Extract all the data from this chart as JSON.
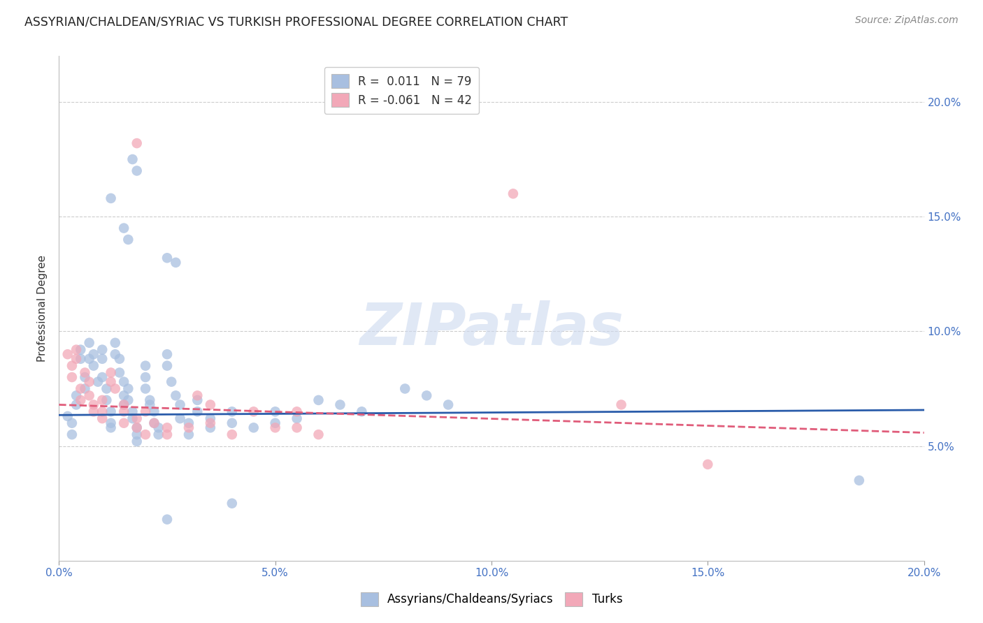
{
  "title": "ASSYRIAN/CHALDEAN/SYRIAC VS TURKISH PROFESSIONAL DEGREE CORRELATION CHART",
  "source": "Source: ZipAtlas.com",
  "ylabel": "Professional Degree",
  "xlim": [
    0.0,
    20.0
  ],
  "ylim": [
    0.0,
    22.0
  ],
  "x_tick_vals": [
    0.0,
    5.0,
    10.0,
    15.0,
    20.0
  ],
  "y_tick_vals": [
    5.0,
    10.0,
    15.0,
    20.0
  ],
  "blue_R": "0.011",
  "blue_N": "79",
  "pink_R": "-0.061",
  "pink_N": "42",
  "blue_color": "#a8bfe0",
  "pink_color": "#f2a8b8",
  "blue_line_color": "#2a5caa",
  "pink_line_color": "#e05c7a",
  "blue_scatter": [
    [
      0.2,
      6.3
    ],
    [
      0.3,
      6.0
    ],
    [
      0.3,
      5.5
    ],
    [
      0.4,
      7.2
    ],
    [
      0.4,
      6.8
    ],
    [
      0.5,
      8.8
    ],
    [
      0.5,
      9.2
    ],
    [
      0.6,
      8.0
    ],
    [
      0.6,
      7.5
    ],
    [
      0.7,
      9.5
    ],
    [
      0.7,
      8.8
    ],
    [
      0.8,
      9.0
    ],
    [
      0.8,
      8.5
    ],
    [
      0.9,
      7.8
    ],
    [
      1.0,
      9.2
    ],
    [
      1.0,
      8.8
    ],
    [
      1.0,
      8.0
    ],
    [
      1.1,
      7.5
    ],
    [
      1.1,
      7.0
    ],
    [
      1.2,
      6.5
    ],
    [
      1.2,
      6.0
    ],
    [
      1.2,
      5.8
    ],
    [
      1.3,
      9.5
    ],
    [
      1.3,
      9.0
    ],
    [
      1.4,
      8.8
    ],
    [
      1.4,
      8.2
    ],
    [
      1.5,
      7.8
    ],
    [
      1.5,
      7.2
    ],
    [
      1.5,
      6.8
    ],
    [
      1.6,
      7.5
    ],
    [
      1.6,
      7.0
    ],
    [
      1.7,
      6.5
    ],
    [
      1.7,
      6.2
    ],
    [
      1.8,
      5.8
    ],
    [
      1.8,
      5.5
    ],
    [
      1.8,
      5.2
    ],
    [
      2.0,
      8.5
    ],
    [
      2.0,
      8.0
    ],
    [
      2.0,
      7.5
    ],
    [
      2.1,
      7.0
    ],
    [
      2.1,
      6.8
    ],
    [
      2.2,
      6.5
    ],
    [
      2.2,
      6.0
    ],
    [
      2.3,
      5.8
    ],
    [
      2.3,
      5.5
    ],
    [
      2.5,
      9.0
    ],
    [
      2.5,
      8.5
    ],
    [
      2.6,
      7.8
    ],
    [
      2.7,
      7.2
    ],
    [
      2.8,
      6.8
    ],
    [
      2.8,
      6.2
    ],
    [
      3.0,
      6.0
    ],
    [
      3.0,
      5.5
    ],
    [
      3.2,
      7.0
    ],
    [
      3.2,
      6.5
    ],
    [
      3.5,
      6.2
    ],
    [
      3.5,
      5.8
    ],
    [
      4.0,
      6.5
    ],
    [
      4.0,
      6.0
    ],
    [
      4.5,
      5.8
    ],
    [
      5.0,
      6.5
    ],
    [
      5.0,
      6.0
    ],
    [
      5.5,
      6.2
    ],
    [
      6.0,
      7.0
    ],
    [
      6.5,
      6.8
    ],
    [
      7.0,
      6.5
    ],
    [
      8.0,
      7.5
    ],
    [
      8.5,
      7.2
    ],
    [
      9.0,
      6.8
    ],
    [
      1.5,
      14.5
    ],
    [
      1.6,
      14.0
    ],
    [
      1.7,
      17.5
    ],
    [
      1.8,
      17.0
    ],
    [
      1.2,
      15.8
    ],
    [
      2.5,
      13.2
    ],
    [
      2.7,
      13.0
    ],
    [
      18.5,
      3.5
    ],
    [
      4.0,
      2.5
    ],
    [
      2.5,
      1.8
    ]
  ],
  "pink_scatter": [
    [
      0.2,
      9.0
    ],
    [
      0.3,
      8.5
    ],
    [
      0.3,
      8.0
    ],
    [
      0.4,
      9.2
    ],
    [
      0.4,
      8.8
    ],
    [
      0.5,
      7.5
    ],
    [
      0.5,
      7.0
    ],
    [
      0.6,
      8.2
    ],
    [
      0.7,
      7.8
    ],
    [
      0.7,
      7.2
    ],
    [
      0.8,
      6.8
    ],
    [
      0.8,
      6.5
    ],
    [
      1.0,
      7.0
    ],
    [
      1.0,
      6.5
    ],
    [
      1.0,
      6.2
    ],
    [
      1.2,
      8.2
    ],
    [
      1.2,
      7.8
    ],
    [
      1.3,
      7.5
    ],
    [
      1.5,
      6.8
    ],
    [
      1.5,
      6.5
    ],
    [
      1.5,
      6.0
    ],
    [
      1.8,
      6.2
    ],
    [
      1.8,
      5.8
    ],
    [
      2.0,
      6.5
    ],
    [
      2.0,
      5.5
    ],
    [
      2.2,
      6.0
    ],
    [
      2.5,
      5.8
    ],
    [
      2.5,
      5.5
    ],
    [
      3.0,
      5.8
    ],
    [
      3.2,
      7.2
    ],
    [
      3.5,
      6.8
    ],
    [
      3.5,
      6.0
    ],
    [
      4.0,
      5.5
    ],
    [
      4.5,
      6.5
    ],
    [
      5.0,
      5.8
    ],
    [
      5.5,
      6.5
    ],
    [
      5.5,
      5.8
    ],
    [
      6.0,
      5.5
    ],
    [
      10.5,
      16.0
    ],
    [
      1.8,
      18.2
    ],
    [
      13.0,
      6.8
    ],
    [
      15.0,
      4.2
    ]
  ],
  "blue_trend_x": [
    0.0,
    20.0
  ],
  "blue_trend_y": [
    6.35,
    6.57
  ],
  "pink_trend_x": [
    0.0,
    20.0
  ],
  "pink_trend_y": [
    6.8,
    5.58
  ],
  "watermark_text": "ZIPatlas",
  "legend_label_blue": "Assyrians/Chaldeans/Syriacs",
  "legend_label_pink": "Turks",
  "background_color": "#ffffff",
  "grid_color": "#cccccc"
}
